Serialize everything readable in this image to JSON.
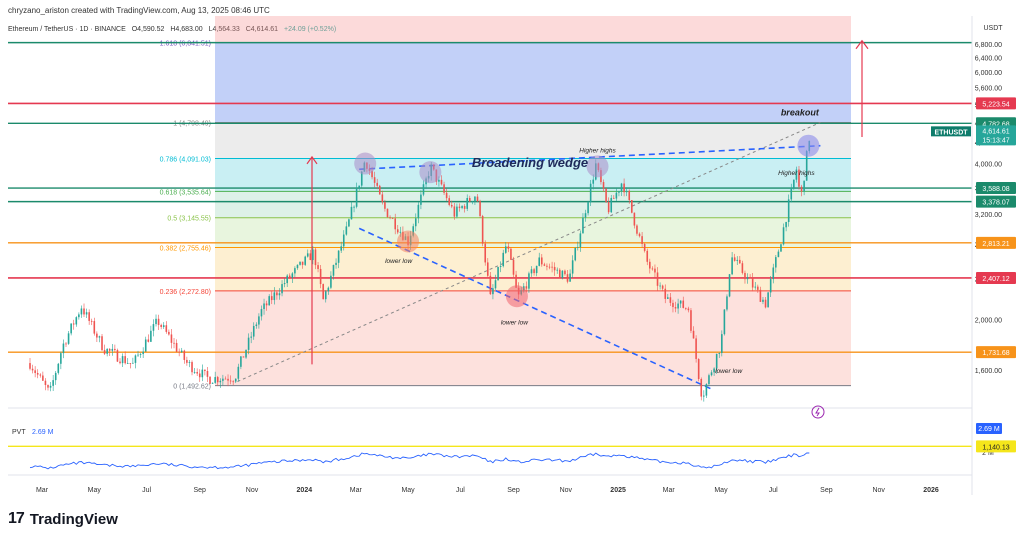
{
  "header": {
    "created": "chryzano_ariston created with TradingView.com, Aug 13, 2025 08:46 UTC",
    "symbol": "Ethereum / TetherUS · 1D · BINANCE",
    "ohlc": {
      "o": "O4,590.52",
      "h": "H4,683.00",
      "l": "L4,564.33",
      "c": "C4,614.61",
      "chg": "+24.09 (+0.52%)"
    },
    "currency": "USDT"
  },
  "footer": {
    "brand": "TradingView",
    "logo_mark": "17"
  },
  "colors": {
    "up": "#26a69a",
    "down": "#ef5350",
    "red_line": "#e53950",
    "green_line": "#1b8a6b",
    "orange_line": "#f7931a",
    "yellow_line": "#f5e61b",
    "blue_dash": "#2962ff",
    "pvt": "#2962ff"
  },
  "chart_data": {
    "type": "candlestick",
    "title": "Broadening wedge",
    "y_axis": {
      "scale": "log",
      "unit": "USDT",
      "ticks": [
        1600,
        2000,
        2400,
        2800,
        3200,
        3600,
        4000,
        4400,
        4800,
        5200,
        5600,
        6000,
        6400,
        6800
      ]
    },
    "x_axis": {
      "ticks": [
        "Mar",
        "May",
        "Jul",
        "Sep",
        "Nov",
        "2024",
        "Mar",
        "May",
        "Jul",
        "Sep",
        "Nov",
        "2025",
        "Mar",
        "May",
        "Jul",
        "Sep",
        "Nov",
        "2026"
      ]
    },
    "price_path": [
      [
        "2023-02-15",
        1650
      ],
      [
        "2023-03-10",
        1440
      ],
      [
        "2023-03-25",
        1780
      ],
      [
        "2023-04-16",
        2120
      ],
      [
        "2023-05-12",
        1760
      ],
      [
        "2023-06-15",
        1640
      ],
      [
        "2023-07-14",
        1990
      ],
      [
        "2023-08-17",
        1650
      ],
      [
        "2023-09-11",
        1540
      ],
      [
        "2023-10-12",
        1550
      ],
      [
        "2023-11-11",
        2070
      ],
      [
        "2023-12-09",
        2360
      ],
      [
        "2024-01-12",
        2700
      ],
      [
        "2024-01-23",
        2180
      ],
      [
        "2024-02-20",
        3000
      ],
      [
        "2024-03-12",
        4080
      ],
      [
        "2024-04-02",
        3300
      ],
      [
        "2024-05-01",
        2830
      ],
      [
        "2024-05-27",
        3950
      ],
      [
        "2024-06-24",
        3200
      ],
      [
        "2024-07-20",
        3500
      ],
      [
        "2024-08-05",
        2200
      ],
      [
        "2024-08-24",
        2800
      ],
      [
        "2024-09-06",
        2200
      ],
      [
        "2024-10-01",
        2600
      ],
      [
        "2024-11-05",
        2400
      ],
      [
        "2024-12-06",
        3980
      ],
      [
        "2024-12-20",
        3250
      ],
      [
        "2025-01-06",
        3700
      ],
      [
        "2025-02-03",
        2600
      ],
      [
        "2025-02-25",
        2200
      ],
      [
        "2025-03-24",
        2100
      ],
      [
        "2025-04-09",
        1420
      ],
      [
        "2025-05-01",
        1800
      ],
      [
        "2025-05-13",
        2650
      ],
      [
        "2025-06-22",
        2150
      ],
      [
        "2025-07-11",
        2900
      ],
      [
        "2025-07-28",
        3900
      ],
      [
        "2025-08-02",
        3400
      ],
      [
        "2025-08-13",
        4614.61
      ]
    ],
    "fibonacci": [
      {
        "label": "1.618 (6,841.51)",
        "value": 6841.51
      },
      {
        "label": "1 (4,798.49)",
        "value": 4798.49
      },
      {
        "label": "0.786 (4,091.03)",
        "value": 4091.03
      },
      {
        "label": "0.618 (3,535.64)",
        "value": 3535.64
      },
      {
        "label": "0.5 (3,145.55)",
        "value": 3145.55
      },
      {
        "label": "0.382 (2,755.46)",
        "value": 2755.46
      },
      {
        "label": "0.236 (2,272.80)",
        "value": 2272.8
      },
      {
        "label": "0 (1,492.62)",
        "value": 1492.62
      }
    ],
    "horizontal_levels": [
      {
        "value": 6841.51,
        "type": "green"
      },
      {
        "label": "5,223.54",
        "value": 5223.54,
        "type": "red"
      },
      {
        "label": "4,782.68",
        "value": 4782.68,
        "type": "green"
      },
      {
        "label": "3,588.08",
        "value": 3588.08,
        "type": "green"
      },
      {
        "label": "3,378.07",
        "value": 3378.07,
        "type": "green"
      },
      {
        "label": "2,813.21",
        "value": 2813.21,
        "type": "orange"
      },
      {
        "label": "2,407.12",
        "value": 2407.12,
        "type": "red"
      },
      {
        "label": "1,731.68",
        "value": 1731.68,
        "type": "orange"
      },
      {
        "label": "1,140.13",
        "value": 1140.13,
        "type": "yellow"
      }
    ],
    "last_price": {
      "symbol": "ETHUSDT",
      "price": "4,614.61",
      "countdown": "15:13:47"
    },
    "annotations": [
      "Higher highs",
      "Higher highs",
      "lower low",
      "lower low",
      "lower low",
      "breakout"
    ],
    "pvt": {
      "name": "PVT",
      "value": "2.69 M",
      "badge": "2.69 M",
      "axis_label": "2 M"
    }
  }
}
